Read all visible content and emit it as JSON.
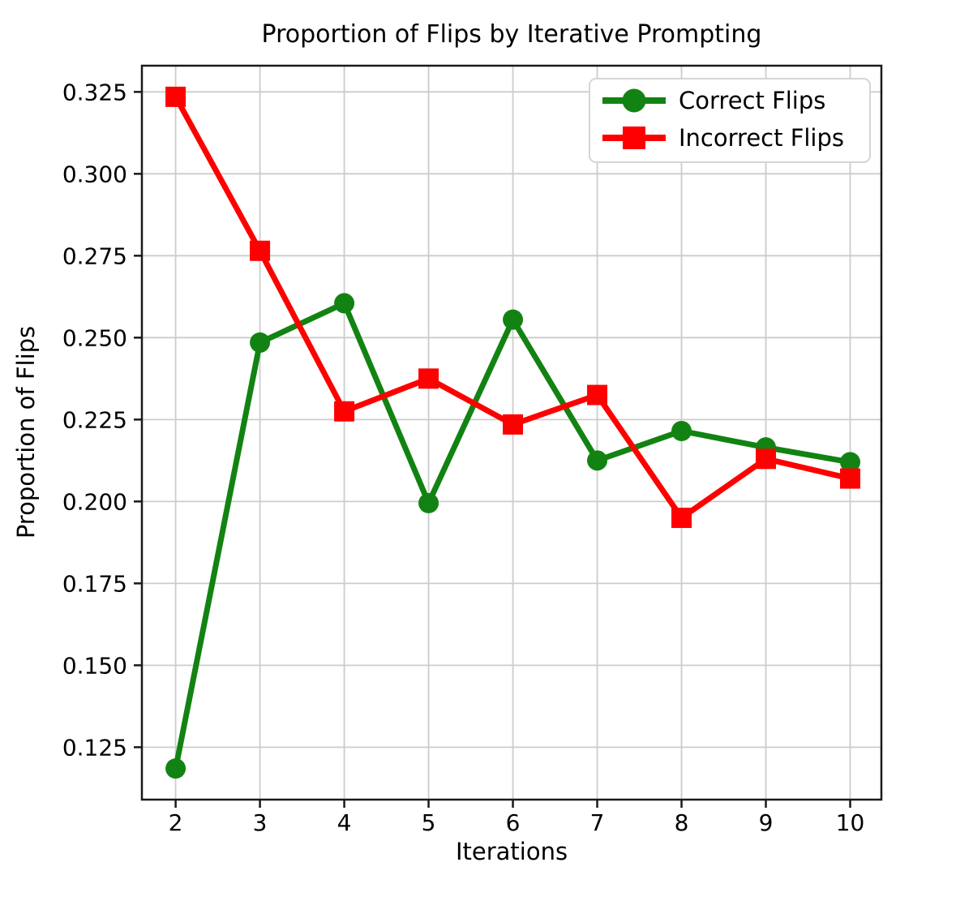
{
  "chart_data": {
    "type": "line",
    "title": "Proportion of Flips by Iterative Prompting",
    "xlabel": "Iterations",
    "ylabel": "Proportion of Flips",
    "x": [
      2,
      3,
      4,
      5,
      6,
      7,
      8,
      9,
      10
    ],
    "series": [
      {
        "name": "Correct Flips",
        "marker": "circle",
        "color": "#128312",
        "values": [
          0.1185,
          0.2485,
          0.2605,
          0.1995,
          0.2555,
          0.2125,
          0.2215,
          0.2165,
          0.212
        ]
      },
      {
        "name": "Incorrect Flips",
        "marker": "square",
        "color": "#ff0000",
        "values": [
          0.3235,
          0.2765,
          0.2275,
          0.2375,
          0.2235,
          0.2325,
          0.195,
          0.213,
          0.207
        ]
      }
    ],
    "xticks": [
      2,
      3,
      4,
      5,
      6,
      7,
      8,
      9,
      10
    ],
    "yticks": [
      0.125,
      0.15,
      0.175,
      0.2,
      0.225,
      0.25,
      0.275,
      0.3,
      0.325
    ],
    "ytick_labels": [
      "0.125",
      "0.150",
      "0.175",
      "0.200",
      "0.225",
      "0.250",
      "0.275",
      "0.300",
      "0.325"
    ],
    "xlim": [
      1.6,
      10.37
    ],
    "ylim": [
      0.109,
      0.333
    ],
    "grid": true,
    "legend_position": "upper right",
    "colors": {
      "grid": "#cccccc",
      "spine": "#1a1a1a",
      "legend_border": "#d5d5d5",
      "legend_bg": "#ffffff"
    }
  }
}
